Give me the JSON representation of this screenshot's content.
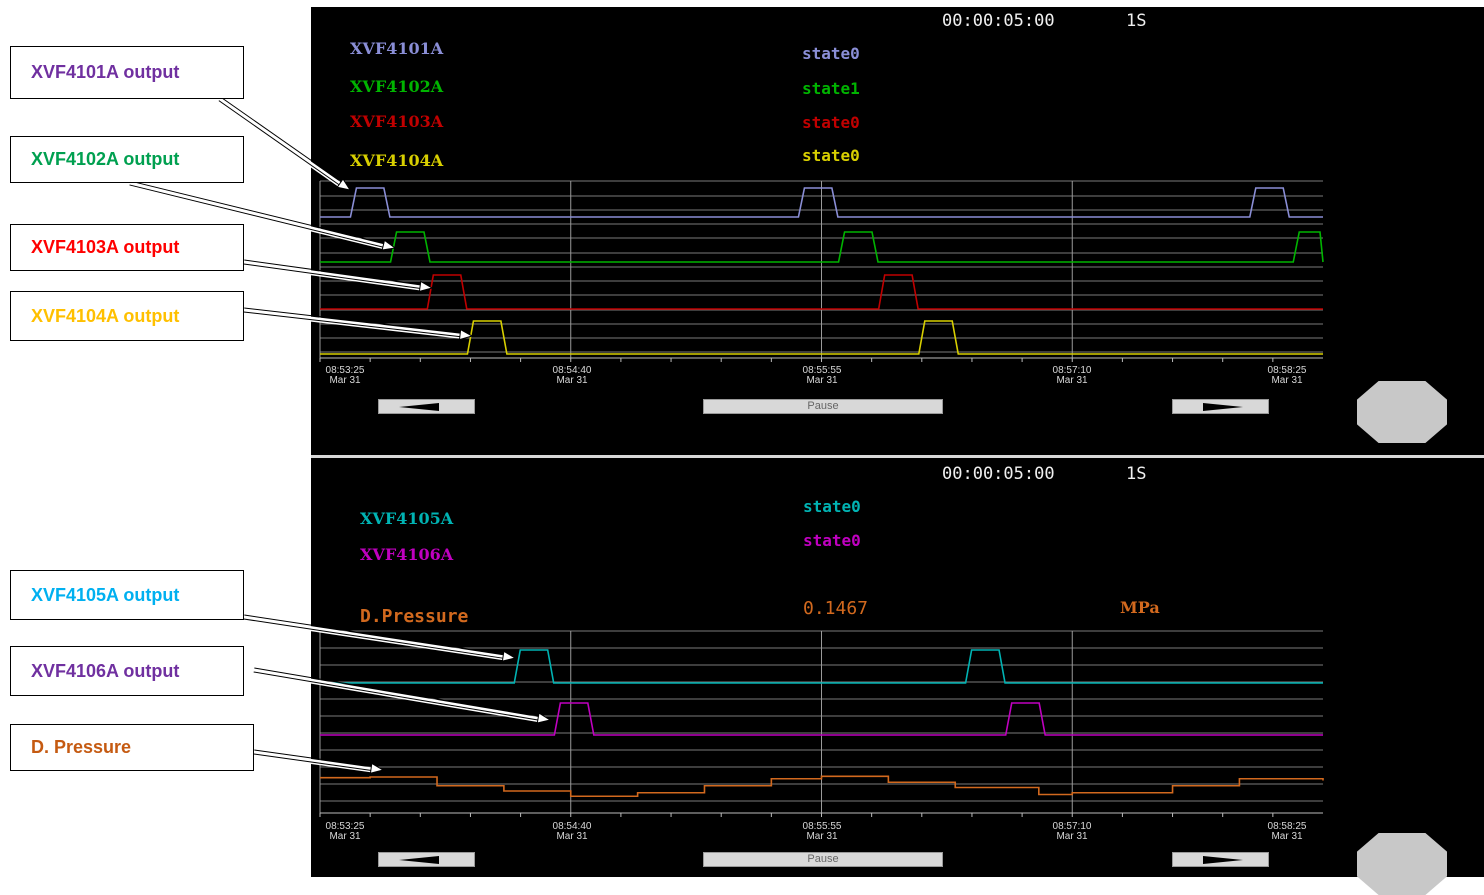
{
  "top_panel": {
    "time_window": "00:00:05:00",
    "interval": "1S",
    "tags": [
      {
        "name": "XVF4101A",
        "state": "state0",
        "color": "#8a8ed6"
      },
      {
        "name": "XVF4102A",
        "state": "state1",
        "color": "#00b400"
      },
      {
        "name": "XVF4103A",
        "state": "state0",
        "color": "#c00000"
      },
      {
        "name": "XVF4104A",
        "state": "state0",
        "color": "#d8cf00"
      }
    ],
    "time_ticks": [
      {
        "time": "08:53:25",
        "date": "Mar 31"
      },
      {
        "time": "08:54:40",
        "date": "Mar 31"
      },
      {
        "time": "08:55:55",
        "date": "Mar 31"
      },
      {
        "time": "08:57:10",
        "date": "Mar 31"
      },
      {
        "time": "08:58:25",
        "date": "Mar 31"
      }
    ],
    "pause_label": "Pause"
  },
  "bottom_panel": {
    "time_window": "00:00:05:00",
    "interval": "1S",
    "tags": [
      {
        "name": "XVF4105A",
        "state": "state0",
        "color": "#00b3b3"
      },
      {
        "name": "XVF4106A",
        "state": "state0",
        "color": "#c000c0"
      }
    ],
    "pressure": {
      "name": "D.Pressure",
      "value": "0.1467",
      "unit": "MPa",
      "color": "#d2691e"
    },
    "time_ticks": [
      {
        "time": "08:53:25",
        "date": "Mar 31"
      },
      {
        "time": "08:54:40",
        "date": "Mar 31"
      },
      {
        "time": "08:55:55",
        "date": "Mar 31"
      },
      {
        "time": "08:57:10",
        "date": "Mar 31"
      },
      {
        "time": "08:58:25",
        "date": "Mar 31"
      }
    ],
    "pause_label": "Pause"
  },
  "callouts": [
    {
      "label": "XVF4101A output",
      "color": "#7030a0"
    },
    {
      "label": "XVF4102A output",
      "color": "#00a050"
    },
    {
      "label": "XVF4103A output",
      "color": "#ff0000"
    },
    {
      "label": "XVF4104A output",
      "color": "#ffc000"
    },
    {
      "label": "XVF4105A output",
      "color": "#00b0f0"
    },
    {
      "label": "XVF4106A output",
      "color": "#7030a0"
    },
    {
      "label": "D. Pressure",
      "color": "#c55a11"
    }
  ],
  "chart_data": [
    {
      "type": "line",
      "x": [
        "08:53:25",
        "08:54:40",
        "08:55:55",
        "08:57:10",
        "08:58:25"
      ],
      "xlabel": "",
      "ylabel": "",
      "grid": true,
      "series": [
        {
          "name": "XVF4101A",
          "pulses": [
            [
              "08:53:35",
              "08:53:45"
            ],
            [
              "08:55:49",
              "08:55:59"
            ],
            [
              "08:58:04",
              "08:58:14"
            ]
          ]
        },
        {
          "name": "XVF4102A",
          "pulses": [
            [
              "08:53:47",
              "08:53:57"
            ],
            [
              "08:56:01",
              "08:56:11"
            ],
            [
              "08:58:17",
              "08:58:25"
            ]
          ]
        },
        {
          "name": "XVF4103A",
          "pulses": [
            [
              "08:53:58",
              "08:54:08"
            ],
            [
              "08:56:13",
              "08:56:23"
            ]
          ]
        },
        {
          "name": "XVF4104A",
          "pulses": [
            [
              "08:54:10",
              "08:54:20"
            ],
            [
              "08:56:25",
              "08:56:35"
            ]
          ]
        }
      ]
    },
    {
      "type": "line",
      "x": [
        "08:53:25",
        "08:54:40",
        "08:55:55",
        "08:57:10",
        "08:58:25"
      ],
      "xlabel": "",
      "ylabel": "",
      "grid": true,
      "series": [
        {
          "name": "XVF4105A",
          "pulses": [
            [
              "08:54:24",
              "08:54:34"
            ],
            [
              "08:56:39",
              "08:56:49"
            ]
          ]
        },
        {
          "name": "XVF4106A",
          "pulses": [
            [
              "08:54:36",
              "08:54:46"
            ],
            [
              "08:56:51",
              "08:57:01"
            ]
          ]
        },
        {
          "name": "D.Pressure",
          "trend": [
            {
              "x": "08:53:25",
              "level": 0.78
            },
            {
              "x": "08:53:40",
              "level": 0.8
            },
            {
              "x": "08:54:00",
              "level": 0.55
            },
            {
              "x": "08:54:20",
              "level": 0.4
            },
            {
              "x": "08:54:40",
              "level": 0.25
            },
            {
              "x": "08:55:00",
              "level": 0.35
            },
            {
              "x": "08:55:20",
              "level": 0.55
            },
            {
              "x": "08:55:40",
              "level": 0.75
            },
            {
              "x": "08:55:55",
              "level": 0.82
            },
            {
              "x": "08:56:15",
              "level": 0.65
            },
            {
              "x": "08:56:35",
              "level": 0.5
            },
            {
              "x": "08:57:00",
              "level": 0.3
            },
            {
              "x": "08:57:10",
              "level": 0.35
            },
            {
              "x": "08:57:40",
              "level": 0.55
            },
            {
              "x": "08:58:00",
              "level": 0.75
            },
            {
              "x": "08:58:25",
              "level": 0.7
            }
          ]
        }
      ]
    }
  ]
}
